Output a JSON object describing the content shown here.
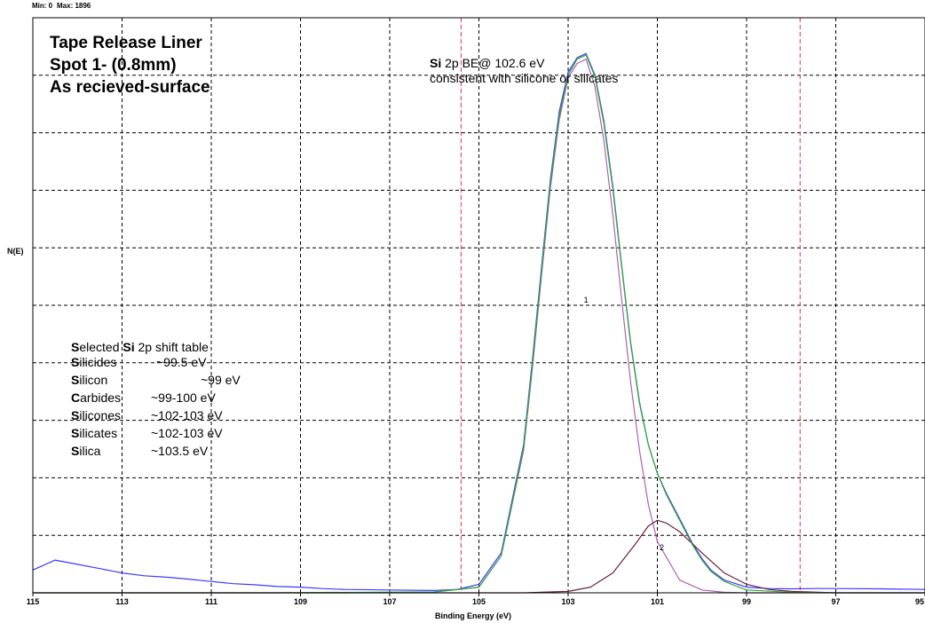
{
  "header": {
    "min_label": "Min: 0",
    "max_label": "Max: 1896"
  },
  "title_lines": [
    "Tape Release Liner",
    "Spot 1- (0.8mm)",
    "As recieved-surface"
  ],
  "annotation": {
    "bold_part": "Si",
    "line1_rest": " 2p BE@ 102.6 eV",
    "line2": "consistent with silicone or silicates"
  },
  "shift_table": {
    "heading_bold": "S",
    "heading_mid": "elected ",
    "heading_bold2": "Si",
    "heading_rest": " 2p shift table",
    "rows": [
      {
        "name": "Silicides",
        "value": "~99.5 eV"
      },
      {
        "name": "Silicon",
        "value": "~99 eV"
      },
      {
        "name": "Carbides",
        "value": "~99-100 eV"
      },
      {
        "name": "Silicones",
        "value": "~102-103 eV"
      },
      {
        "name": "Silicates",
        "value": "~102-103 eV"
      },
      {
        "name": "Silica",
        "value": "~103.5 eV"
      }
    ]
  },
  "colors": {
    "envelope": "#6a2040",
    "raw": "#3a3aff",
    "peak1": "#33a833",
    "peak2": "#b060b0",
    "region": "#dd3355",
    "grid": "#000000"
  },
  "chart_data": {
    "type": "line",
    "xlabel": "Binding Energy (eV)",
    "ylabel": "N(E)",
    "xlim": [
      115,
      95
    ],
    "ylim": [
      0,
      1896
    ],
    "x_reversed": true,
    "x_ticks": [
      115,
      113,
      111,
      109,
      107,
      105,
      103,
      101,
      99,
      97,
      95
    ],
    "region_markers": [
      105.4,
      97.8
    ],
    "peak_labels": [
      {
        "text": "1",
        "x": 102.6,
        "y": 1020
      },
      {
        "text": "2",
        "x": 100.9,
        "y": 150
      }
    ],
    "series": [
      {
        "x": [
          115,
          114.5,
          114,
          113.5,
          113,
          112.5,
          112,
          111.5,
          111,
          110.5,
          110,
          109.5,
          109,
          108.5,
          108,
          107,
          106,
          105.5,
          105,
          104.5,
          104,
          103.8,
          103.6,
          103.4,
          103.2,
          103,
          102.8,
          102.6,
          102.4,
          102.2,
          102,
          101.8,
          101.6,
          101.4,
          101.2,
          101,
          100.8,
          100.6,
          100.4,
          100.2,
          100,
          99.8,
          99.5,
          99,
          98.5,
          98,
          97.5,
          97,
          96,
          95
        ],
        "values": [
          80,
          115,
          100,
          85,
          70,
          60,
          55,
          48,
          40,
          32,
          28,
          22,
          20,
          15,
          12,
          10,
          8,
          12,
          30,
          140,
          520,
          820,
          1140,
          1450,
          1690,
          1830,
          1880,
          1895,
          1820,
          1660,
          1430,
          1150,
          880,
          670,
          520,
          420,
          350,
          290,
          230,
          170,
          120,
          80,
          45,
          20,
          15,
          14,
          15,
          15,
          14,
          12
        ]
      },
      {
        "x": [
          115,
          110,
          106,
          105,
          104.5,
          104,
          103.8,
          103.6,
          103.4,
          103.2,
          103,
          102.8,
          102.6,
          102.4,
          102.2,
          102,
          101.8,
          101.6,
          101.4,
          101.2,
          101,
          100.8,
          100.6,
          100.4,
          100.2,
          100,
          99.8,
          99.5,
          99,
          98,
          97,
          95
        ],
        "values": [
          0,
          0,
          3,
          20,
          130,
          510,
          805,
          1125,
          1435,
          1675,
          1820,
          1875,
          1890,
          1815,
          1650,
          1420,
          1145,
          875,
          665,
          520,
          420,
          345,
          285,
          225,
          165,
          115,
          75,
          40,
          10,
          2,
          0,
          0
        ]
      },
      {
        "x": [
          115,
          108,
          106,
          105,
          104.5,
          104,
          103.8,
          103.6,
          103.4,
          103.2,
          103,
          102.8,
          102.6,
          102.4,
          102.2,
          102,
          101.8,
          101.6,
          101.4,
          101.2,
          101,
          100.5,
          100,
          99.5,
          99,
          98,
          95
        ],
        "values": [
          0,
          0,
          3,
          20,
          130,
          500,
          790,
          1110,
          1420,
          1660,
          1810,
          1860,
          1875,
          1780,
          1590,
          1330,
          1030,
          740,
          500,
          310,
          180,
          45,
          10,
          2,
          0,
          0,
          0
        ]
      },
      {
        "x": [
          115,
          104,
          103,
          102.5,
          102,
          101.5,
          101.2,
          101,
          100.8,
          100.5,
          100,
          99.5,
          99,
          98.5,
          98,
          97,
          95
        ],
        "values": [
          0,
          0,
          5,
          20,
          70,
          170,
          235,
          255,
          245,
          215,
          140,
          70,
          30,
          12,
          5,
          0,
          0
        ]
      }
    ]
  }
}
